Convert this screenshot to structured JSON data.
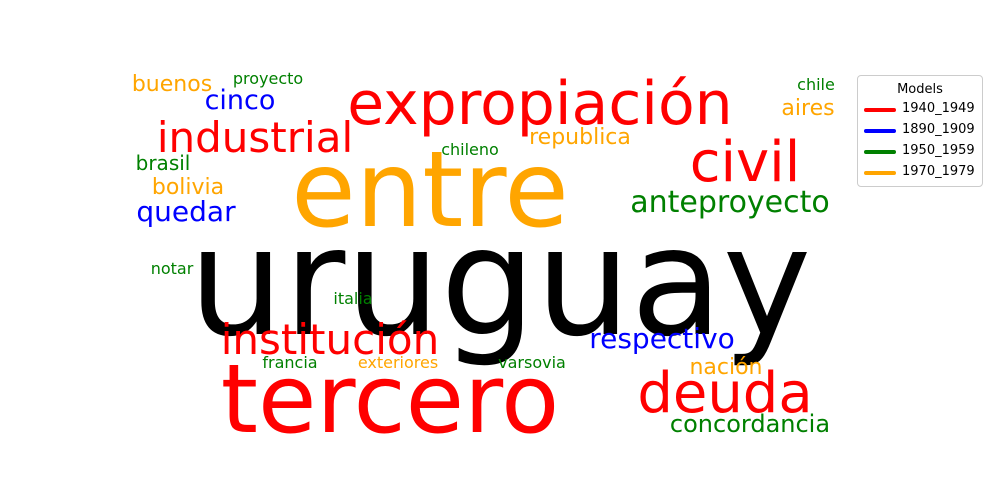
{
  "chart_data": {
    "type": "wordcloud",
    "legend": {
      "title": "Models",
      "placement": "top-right",
      "entries": [
        {
          "name": "1940_1949",
          "color": "#ff0000"
        },
        {
          "name": "1890_1909",
          "color": "#0000ff"
        },
        {
          "name": "1950_1959",
          "color": "#008000"
        },
        {
          "name": "1970_1979",
          "color": "#ffa500"
        }
      ]
    },
    "words": [
      {
        "text": "uruguay",
        "color": "#000000"
      },
      {
        "text": "entre",
        "color": "#ffa500"
      },
      {
        "text": "tercero",
        "color": "#ff0000"
      },
      {
        "text": "expropiación",
        "color": "#ff0000"
      },
      {
        "text": "civil",
        "color": "#ff0000"
      },
      {
        "text": "industrial",
        "color": "#ff0000"
      },
      {
        "text": "deuda",
        "color": "#ff0000"
      },
      {
        "text": "institución",
        "color": "#ff0000"
      },
      {
        "text": "anteproyecto",
        "color": "#008000"
      },
      {
        "text": "concordancia",
        "color": "#008000"
      },
      {
        "text": "respectivo",
        "color": "#0000ff"
      },
      {
        "text": "quedar",
        "color": "#0000ff"
      },
      {
        "text": "cinco",
        "color": "#0000ff"
      },
      {
        "text": "republica",
        "color": "#ffa500"
      },
      {
        "text": "aires",
        "color": "#ffa500"
      },
      {
        "text": "bolivia",
        "color": "#ffa500"
      },
      {
        "text": "buenos",
        "color": "#ffa500"
      },
      {
        "text": "nación",
        "color": "#ffa500"
      },
      {
        "text": "exteriores",
        "color": "#ffa500"
      },
      {
        "text": "brasil",
        "color": "#008000"
      },
      {
        "text": "chile",
        "color": "#008000"
      },
      {
        "text": "chileno",
        "color": "#008000"
      },
      {
        "text": "proyecto",
        "color": "#008000"
      },
      {
        "text": "notar",
        "color": "#008000"
      },
      {
        "text": "italia",
        "color": "#008000"
      },
      {
        "text": "francia",
        "color": "#008000"
      },
      {
        "text": "varsovia",
        "color": "#008000"
      }
    ]
  }
}
